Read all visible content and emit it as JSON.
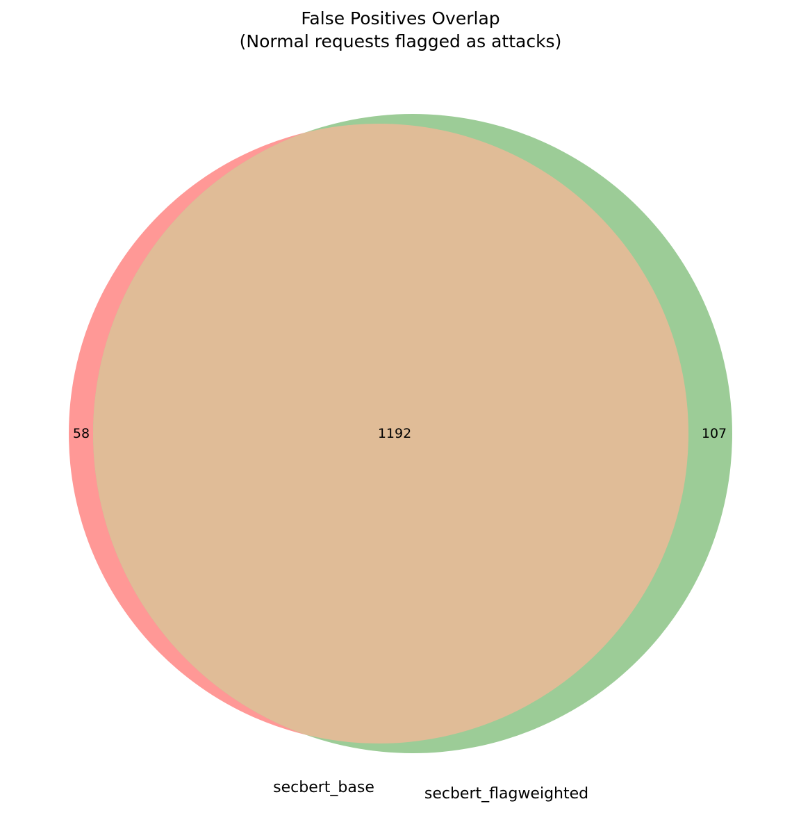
{
  "title": {
    "line1": "False Positives Overlap",
    "line2": "(Normal requests flagged as attacks)"
  },
  "chart_data": {
    "type": "venn",
    "sets": [
      {
        "name": "secbert_base",
        "only_count": 58,
        "color": "#ff9896"
      },
      {
        "name": "secbert_flagweighted",
        "only_count": 107,
        "color": "#9ccc97"
      }
    ],
    "intersection_count": 1192,
    "intersection_color": "#e0bc97"
  }
}
